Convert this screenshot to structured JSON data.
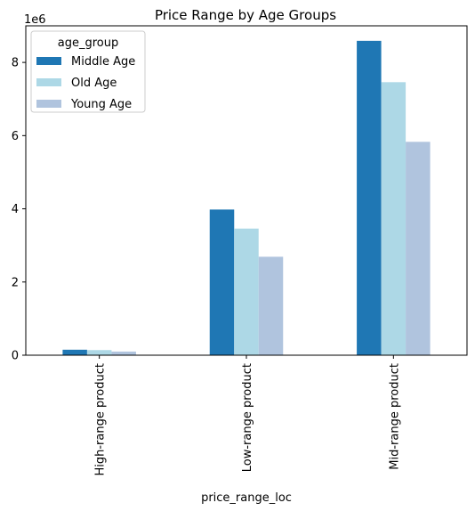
{
  "chart_data": {
    "type": "bar",
    "title": "Price Range by Age Groups",
    "xlabel": "price_range_loc",
    "ylabel": "",
    "y_offset_label": "1e6",
    "y_multiplier": 1000000,
    "categories": [
      "High-range product",
      "Low-range product",
      "Mid-range product"
    ],
    "series": [
      {
        "name": "Middle Age",
        "color": "#1f77b4",
        "values": [
          150000,
          3980000,
          8590000
        ]
      },
      {
        "name": "Old Age",
        "color": "#add8e6",
        "values": [
          140000,
          3460000,
          7460000
        ]
      },
      {
        "name": "Young Age",
        "color": "#b0c4de",
        "values": [
          100000,
          2690000,
          5830000
        ]
      }
    ],
    "ylim": [
      0,
      9000000
    ],
    "yticks": [
      0,
      2,
      4,
      6,
      8
    ],
    "grid": false,
    "legend": {
      "title": "age_group",
      "placement": "top-left"
    }
  }
}
